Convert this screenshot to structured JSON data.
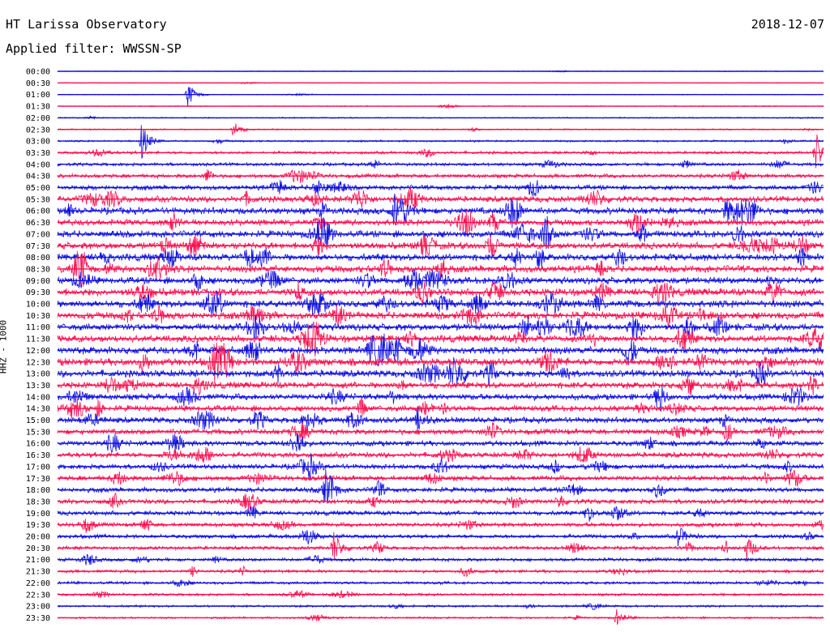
{
  "header": {
    "station": "HT Larissa Observatory",
    "date": "2018-12-07",
    "filter": "Applied filter: WWSSN-SP"
  },
  "chart_data": {
    "type": "line",
    "title": "HT Larissa Observatory",
    "subtitle": "Applied filter: WWSSN-SP",
    "ylabel": "HHZ - 1000",
    "time_labels": [
      "00:00",
      "00:30",
      "01:00",
      "01:30",
      "02:00",
      "02:30",
      "03:00",
      "03:30",
      "04:00",
      "04:30",
      "05:00",
      "05:30",
      "06:00",
      "06:30",
      "07:00",
      "07:30",
      "08:00",
      "08:30",
      "09:00",
      "09:30",
      "10:00",
      "10:30",
      "11:00",
      "11:30",
      "12:00",
      "12:30",
      "13:00",
      "13:30",
      "14:00",
      "14:30",
      "15:00",
      "15:30",
      "16:00",
      "16:30",
      "17:00",
      "17:30",
      "18:00",
      "18:30",
      "19:00",
      "19:30",
      "20:00",
      "20:30",
      "21:00",
      "21:30",
      "22:00",
      "22:30",
      "23:00",
      "23:30"
    ],
    "trace_colors": [
      "#1010e0",
      "#ff1050"
    ],
    "noise_level": [
      0.5,
      0.6,
      0.6,
      0.8,
      0.9,
      1.0,
      1.3,
      2.0,
      2.3,
      2.8,
      3.4,
      4.2,
      4.8,
      4.4,
      4.8,
      4.8,
      5.0,
      5.0,
      4.8,
      5.2,
      5.2,
      5.2,
      5.0,
      5.0,
      5.2,
      5.4,
      5.0,
      4.6,
      4.4,
      4.2,
      4.2,
      4.0,
      3.8,
      3.8,
      3.6,
      3.6,
      3.4,
      3.4,
      3.2,
      3.0,
      2.8,
      2.6,
      2.4,
      2.2,
      2.0,
      1.8,
      1.6,
      1.4
    ],
    "events": [
      {
        "row": 2,
        "t": 0.17,
        "amp": 16
      },
      {
        "row": 5,
        "t": 0.23,
        "amp": 10
      },
      {
        "row": 6,
        "t": 0.11,
        "amp": 24
      },
      {
        "row": 7,
        "t": 0.99,
        "amp": 26
      },
      {
        "row": 12,
        "t": 0.44,
        "amp": 18
      },
      {
        "row": 25,
        "t": 0.64,
        "amp": 14
      },
      {
        "row": 30,
        "t": 0.47,
        "amp": 14
      },
      {
        "row": 34,
        "t": 0.33,
        "amp": 14
      },
      {
        "row": 36,
        "t": 0.35,
        "amp": 16
      },
      {
        "row": 41,
        "t": 0.36,
        "amp": 22
      },
      {
        "row": 40,
        "t": 0.81,
        "amp": 14
      },
      {
        "row": 41,
        "t": 0.9,
        "amp": 16
      },
      {
        "row": 47,
        "t": 0.73,
        "amp": 10
      }
    ]
  }
}
